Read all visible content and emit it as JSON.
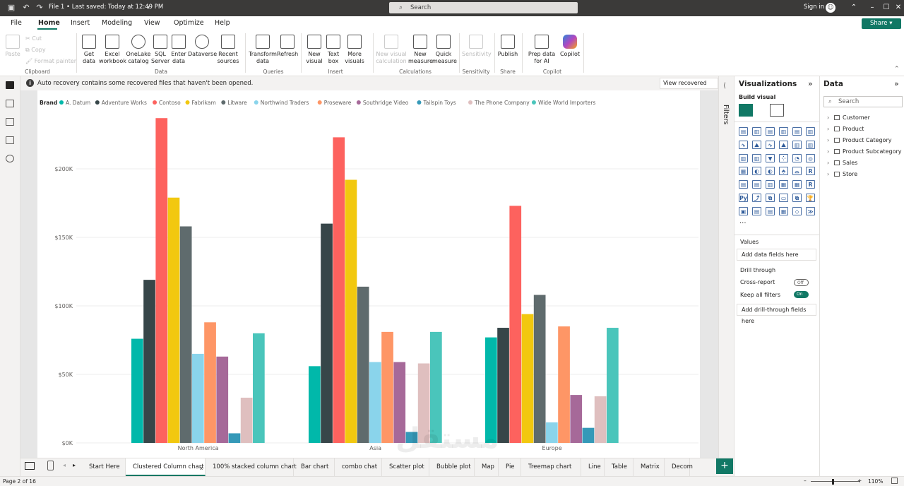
{
  "titlebar": {
    "file_label": "File 1 • Last saved: Today at 12:49 PM",
    "search_placeholder": "Search",
    "signin": "Sign in"
  },
  "menu": {
    "items": [
      "File",
      "Home",
      "Insert",
      "Modeling",
      "View",
      "Optimize",
      "Help"
    ],
    "active": "Home",
    "share": "Share"
  },
  "ribbon": {
    "clipboard": {
      "paste": "Paste",
      "cut": "Cut",
      "copy": "Copy",
      "format_painter": "Format painter",
      "group": "Clipboard"
    },
    "data": {
      "get_data": "Get data",
      "excel": "Excel workbook",
      "onelake": "OneLake catalog",
      "sql": "SQL Server",
      "enter": "Enter data",
      "dataverse": "Dataverse",
      "recent": "Recent sources",
      "group": "Data"
    },
    "queries": {
      "transform": "Transform data",
      "refresh": "Refresh",
      "group": "Queries"
    },
    "insert": {
      "new_visual": "New visual",
      "text_box": "Text box",
      "more_visuals": "More visuals",
      "group": "Insert"
    },
    "calculations": {
      "new_visual_calc": "New visual calculation",
      "new_measure": "New measure",
      "quick_measure": "Quick measure",
      "group": "Calculations"
    },
    "sensitivity": {
      "label": "Sensitivity",
      "group": "Sensitivity"
    },
    "share": {
      "publish": "Publish",
      "group": "Share"
    },
    "copilot": {
      "prep": "Prep data for AI",
      "copilot": "Copilot",
      "group": "Copilot"
    }
  },
  "notice": {
    "message": "Auto recovery contains some recovered files that haven't been opened.",
    "button": "View recovered files"
  },
  "filters_label": "Filters",
  "visualizations": {
    "title": "Visualizations",
    "build_visual": "Build visual",
    "more": "···",
    "values_label": "Values",
    "values_placeholder": "Add data fields here",
    "drill_through": "Drill through",
    "cross_report": "Cross-report",
    "cross_report_state": "Off",
    "keep_filters": "Keep all filters",
    "keep_filters_state": "On",
    "drill_placeholder": "Add drill-through fields here"
  },
  "data_pane": {
    "title": "Data",
    "search_placeholder": "Search",
    "tables": [
      "Customer",
      "Product",
      "Product Category",
      "Product Subcategory",
      "Sales",
      "Store"
    ]
  },
  "chart_data": {
    "type": "bar",
    "legend_title": "Brand",
    "legend_position": "top-left",
    "grid": true,
    "categories": [
      "North America",
      "Asia",
      "Europe"
    ],
    "y_ticks": [
      "$0K",
      "$50K",
      "$100K",
      "$150K",
      "$200K"
    ],
    "ylim": [
      0,
      240000
    ],
    "series": [
      {
        "name": "A. Datum",
        "color": "#01B8AA",
        "values": [
          76000,
          56000,
          77000
        ]
      },
      {
        "name": "Adventure Works",
        "color": "#374649",
        "values": [
          119000,
          160000,
          84000
        ]
      },
      {
        "name": "Contoso",
        "color": "#FD625E",
        "values": [
          237000,
          223000,
          173000
        ]
      },
      {
        "name": "Fabrikam",
        "color": "#F2C80F",
        "values": [
          179000,
          192000,
          94000
        ]
      },
      {
        "name": "Litware",
        "color": "#5F6B6D",
        "values": [
          158000,
          114000,
          108000
        ]
      },
      {
        "name": "Northwind Traders",
        "color": "#8AD4EB",
        "values": [
          65000,
          59000,
          15000
        ]
      },
      {
        "name": "Proseware",
        "color": "#FE9666",
        "values": [
          88000,
          81000,
          85000
        ]
      },
      {
        "name": "Southridge Video",
        "color": "#A66999",
        "values": [
          63000,
          59000,
          35000
        ]
      },
      {
        "name": "Tailspin Toys",
        "color": "#3599B8",
        "values": [
          7000,
          8000,
          11000
        ]
      },
      {
        "name": "The Phone Company",
        "color": "#DFBFBF",
        "values": [
          33000,
          58000,
          34000
        ]
      },
      {
        "name": "Wide World Importers",
        "color": "#4AC5BB",
        "values": [
          80000,
          81000,
          84000
        ]
      }
    ]
  },
  "tabs": {
    "items": [
      "Start Here",
      "Clustered Column chart",
      "100% stacked column chart",
      "Bar chart",
      "combo chat",
      "Scatter plot",
      "Bubble plot",
      "Map",
      "Pie",
      "Treemap chart",
      "Line",
      "Table",
      "Matrix",
      "Decom"
    ],
    "active": "Clustered Column chart"
  },
  "status": {
    "page": "Page 2 of 16",
    "zoom": "110%"
  },
  "watermark": {
    "main": "مستقل",
    "sub": "mostaql.com"
  }
}
